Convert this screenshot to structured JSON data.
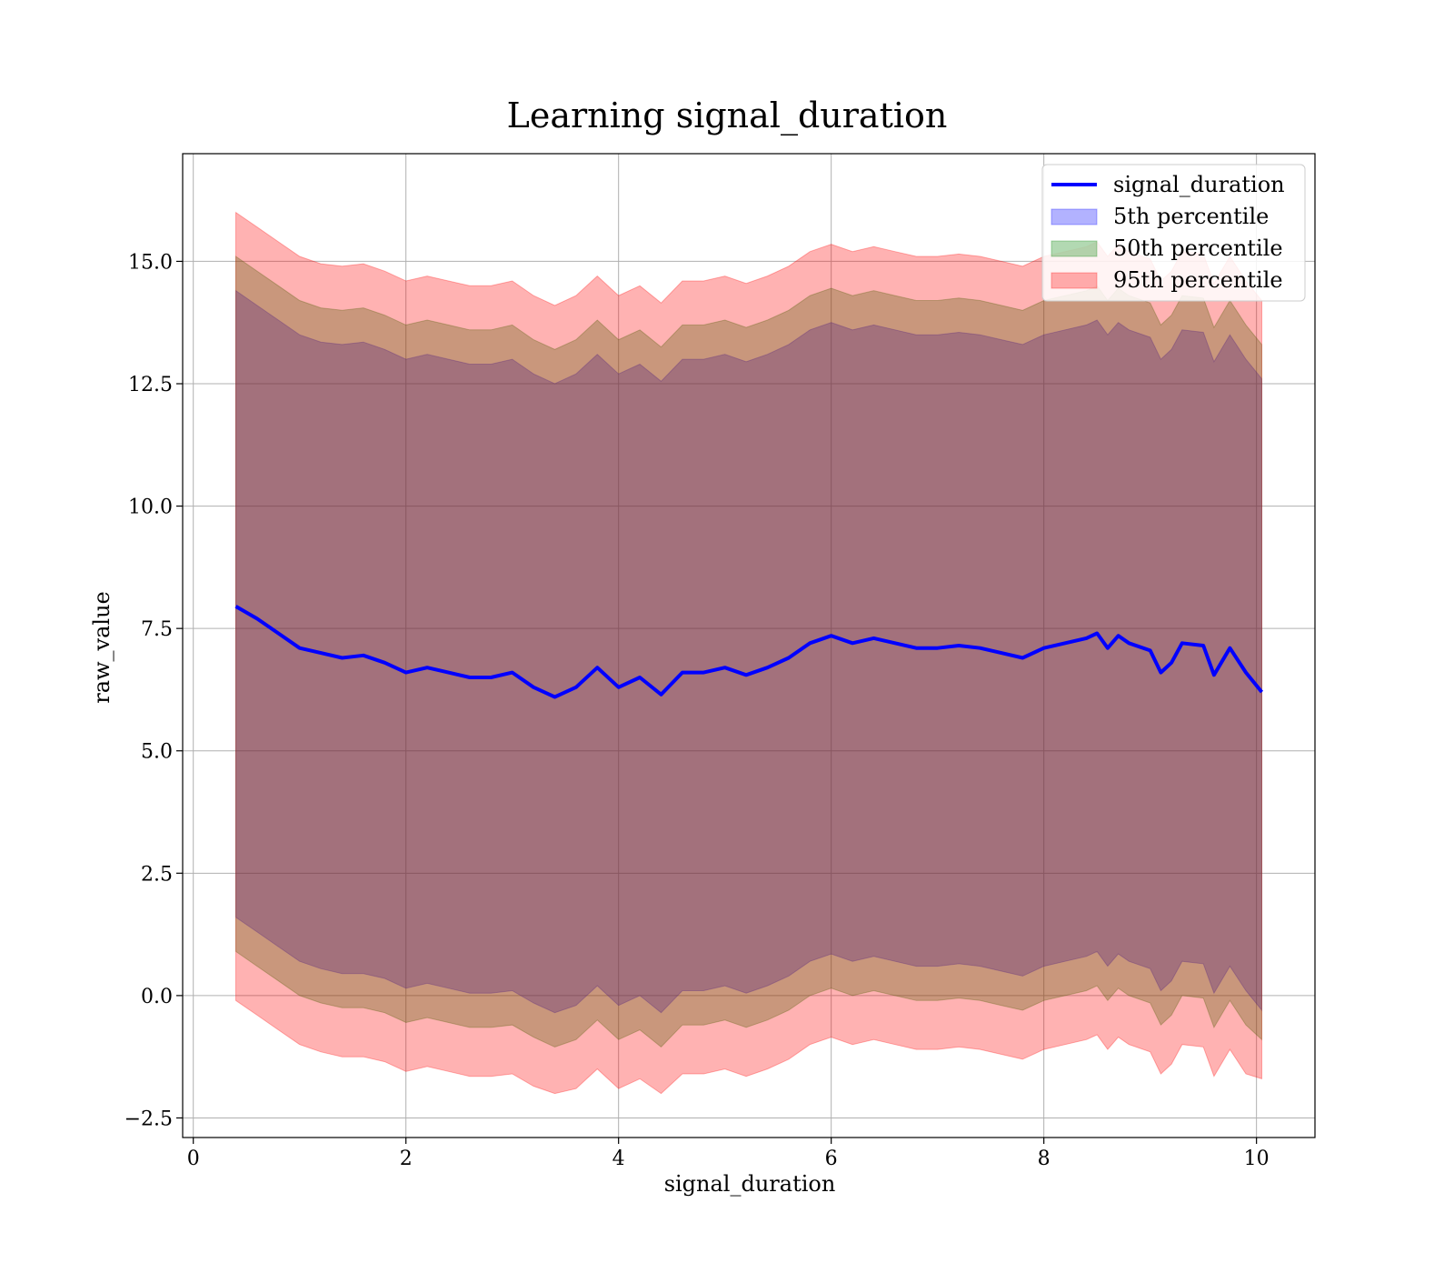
{
  "chart_data": {
    "type": "line",
    "title": "Learning signal_duration",
    "xlabel": "signal_duration",
    "ylabel": "raw_value",
    "xlim": [
      -0.1,
      10.55
    ],
    "ylim": [
      -2.9,
      17.2
    ],
    "xticks": [
      0,
      2,
      4,
      6,
      8,
      10
    ],
    "xtick_labels": [
      "0",
      "2",
      "4",
      "6",
      "8",
      "10"
    ],
    "yticks": [
      -2.5,
      0,
      2.5,
      5,
      7.5,
      10,
      12.5,
      15
    ],
    "ytick_labels": [
      "−2.5",
      "0.0",
      "2.5",
      "5.0",
      "7.5",
      "10.0",
      "12.5",
      "15.0"
    ],
    "grid": true,
    "legend_position": "top-right",
    "x": [
      0.4,
      0.6,
      0.8,
      1.0,
      1.2,
      1.4,
      1.6,
      1.8,
      2.0,
      2.2,
      2.4,
      2.6,
      2.8,
      3.0,
      3.2,
      3.4,
      3.6,
      3.8,
      4.0,
      4.2,
      4.4,
      4.6,
      4.8,
      5.0,
      5.2,
      5.4,
      5.6,
      5.8,
      6.0,
      6.2,
      6.4,
      6.6,
      6.8,
      7.0,
      7.2,
      7.4,
      7.6,
      7.8,
      8.0,
      8.2,
      8.4,
      8.5,
      8.6,
      8.7,
      8.8,
      9.0,
      9.1,
      9.2,
      9.3,
      9.5,
      9.6,
      9.75,
      9.9,
      10.05
    ],
    "series": [
      {
        "name": "signal_duration",
        "kind": "line",
        "color": "#0000ff",
        "values": [
          7.95,
          7.7,
          7.4,
          7.1,
          7.0,
          6.9,
          6.95,
          6.8,
          6.6,
          6.7,
          6.6,
          6.5,
          6.5,
          6.6,
          6.3,
          6.1,
          6.3,
          6.7,
          6.3,
          6.5,
          6.15,
          6.6,
          6.6,
          6.7,
          6.55,
          6.7,
          6.9,
          7.2,
          7.35,
          7.2,
          7.3,
          7.2,
          7.1,
          7.1,
          7.15,
          7.1,
          7.0,
          6.9,
          7.1,
          7.2,
          7.3,
          7.4,
          7.1,
          7.35,
          7.2,
          7.05,
          6.6,
          6.8,
          7.2,
          7.15,
          6.55,
          7.1,
          6.6,
          6.2
        ]
      },
      {
        "name": "5th percentile",
        "kind": "band",
        "color": "#0000ff",
        "lower": [
          1.6,
          1.3,
          1.0,
          0.7,
          0.55,
          0.45,
          0.45,
          0.35,
          0.15,
          0.25,
          0.15,
          0.05,
          0.05,
          0.1,
          -0.15,
          -0.35,
          -0.2,
          0.2,
          -0.2,
          0.0,
          -0.35,
          0.1,
          0.1,
          0.2,
          0.05,
          0.2,
          0.4,
          0.7,
          0.85,
          0.7,
          0.8,
          0.7,
          0.6,
          0.6,
          0.65,
          0.6,
          0.5,
          0.4,
          0.6,
          0.7,
          0.8,
          0.9,
          0.6,
          0.85,
          0.7,
          0.55,
          0.1,
          0.3,
          0.7,
          0.65,
          0.05,
          0.6,
          0.1,
          -0.3
        ],
        "upper": [
          14.4,
          14.1,
          13.8,
          13.5,
          13.35,
          13.3,
          13.35,
          13.2,
          13.0,
          13.1,
          13.0,
          12.9,
          12.9,
          13.0,
          12.7,
          12.5,
          12.7,
          13.1,
          12.7,
          12.9,
          12.55,
          13.0,
          13.0,
          13.1,
          12.95,
          13.1,
          13.3,
          13.6,
          13.75,
          13.6,
          13.7,
          13.6,
          13.5,
          13.5,
          13.55,
          13.5,
          13.4,
          13.3,
          13.5,
          13.6,
          13.7,
          13.8,
          13.5,
          13.75,
          13.6,
          13.45,
          13.0,
          13.2,
          13.6,
          13.55,
          12.95,
          13.5,
          13.0,
          12.6
        ]
      },
      {
        "name": "50th percentile",
        "kind": "band",
        "color": "#008000",
        "lower": [
          0.9,
          0.6,
          0.3,
          0.0,
          -0.15,
          -0.25,
          -0.25,
          -0.35,
          -0.55,
          -0.45,
          -0.55,
          -0.65,
          -0.65,
          -0.6,
          -0.85,
          -1.05,
          -0.9,
          -0.5,
          -0.9,
          -0.7,
          -1.05,
          -0.6,
          -0.6,
          -0.5,
          -0.65,
          -0.5,
          -0.3,
          0.0,
          0.15,
          0.0,
          0.1,
          0.0,
          -0.1,
          -0.1,
          -0.05,
          -0.1,
          -0.2,
          -0.3,
          -0.1,
          0.0,
          0.1,
          0.2,
          -0.1,
          0.15,
          0.0,
          -0.15,
          -0.6,
          -0.4,
          0.0,
          -0.05,
          -0.65,
          -0.1,
          -0.6,
          -0.9
        ],
        "upper": [
          15.1,
          14.8,
          14.5,
          14.2,
          14.05,
          14.0,
          14.05,
          13.9,
          13.7,
          13.8,
          13.7,
          13.6,
          13.6,
          13.7,
          13.4,
          13.2,
          13.4,
          13.8,
          13.4,
          13.6,
          13.25,
          13.7,
          13.7,
          13.8,
          13.65,
          13.8,
          14.0,
          14.3,
          14.45,
          14.3,
          14.4,
          14.3,
          14.2,
          14.2,
          14.25,
          14.2,
          14.1,
          14.0,
          14.2,
          14.3,
          14.4,
          14.5,
          14.2,
          14.45,
          14.3,
          14.15,
          13.7,
          13.9,
          14.3,
          14.25,
          13.65,
          14.2,
          13.7,
          13.3
        ]
      },
      {
        "name": "95th percentile",
        "kind": "band",
        "color": "#ff0000",
        "lower": [
          -0.1,
          -0.4,
          -0.7,
          -1.0,
          -1.15,
          -1.25,
          -1.25,
          -1.35,
          -1.55,
          -1.45,
          -1.55,
          -1.65,
          -1.65,
          -1.6,
          -1.85,
          -2.0,
          -1.9,
          -1.5,
          -1.9,
          -1.7,
          -2.0,
          -1.6,
          -1.6,
          -1.5,
          -1.65,
          -1.5,
          -1.3,
          -1.0,
          -0.85,
          -1.0,
          -0.9,
          -1.0,
          -1.1,
          -1.1,
          -1.05,
          -1.1,
          -1.2,
          -1.3,
          -1.1,
          -1.0,
          -0.9,
          -0.8,
          -1.1,
          -0.85,
          -1.0,
          -1.15,
          -1.6,
          -1.4,
          -1.0,
          -1.05,
          -1.65,
          -1.1,
          -1.6,
          -1.7
        ],
        "upper": [
          16.0,
          15.7,
          15.4,
          15.1,
          14.95,
          14.9,
          14.95,
          14.8,
          14.6,
          14.7,
          14.6,
          14.5,
          14.5,
          14.6,
          14.3,
          14.1,
          14.3,
          14.7,
          14.3,
          14.5,
          14.15,
          14.6,
          14.6,
          14.7,
          14.55,
          14.7,
          14.9,
          15.2,
          15.35,
          15.2,
          15.3,
          15.2,
          15.1,
          15.1,
          15.15,
          15.1,
          15.0,
          14.9,
          15.1,
          15.2,
          15.3,
          15.4,
          15.1,
          15.35,
          15.2,
          15.05,
          14.6,
          14.8,
          15.2,
          15.15,
          14.55,
          15.1,
          14.6,
          14.2
        ]
      }
    ]
  }
}
